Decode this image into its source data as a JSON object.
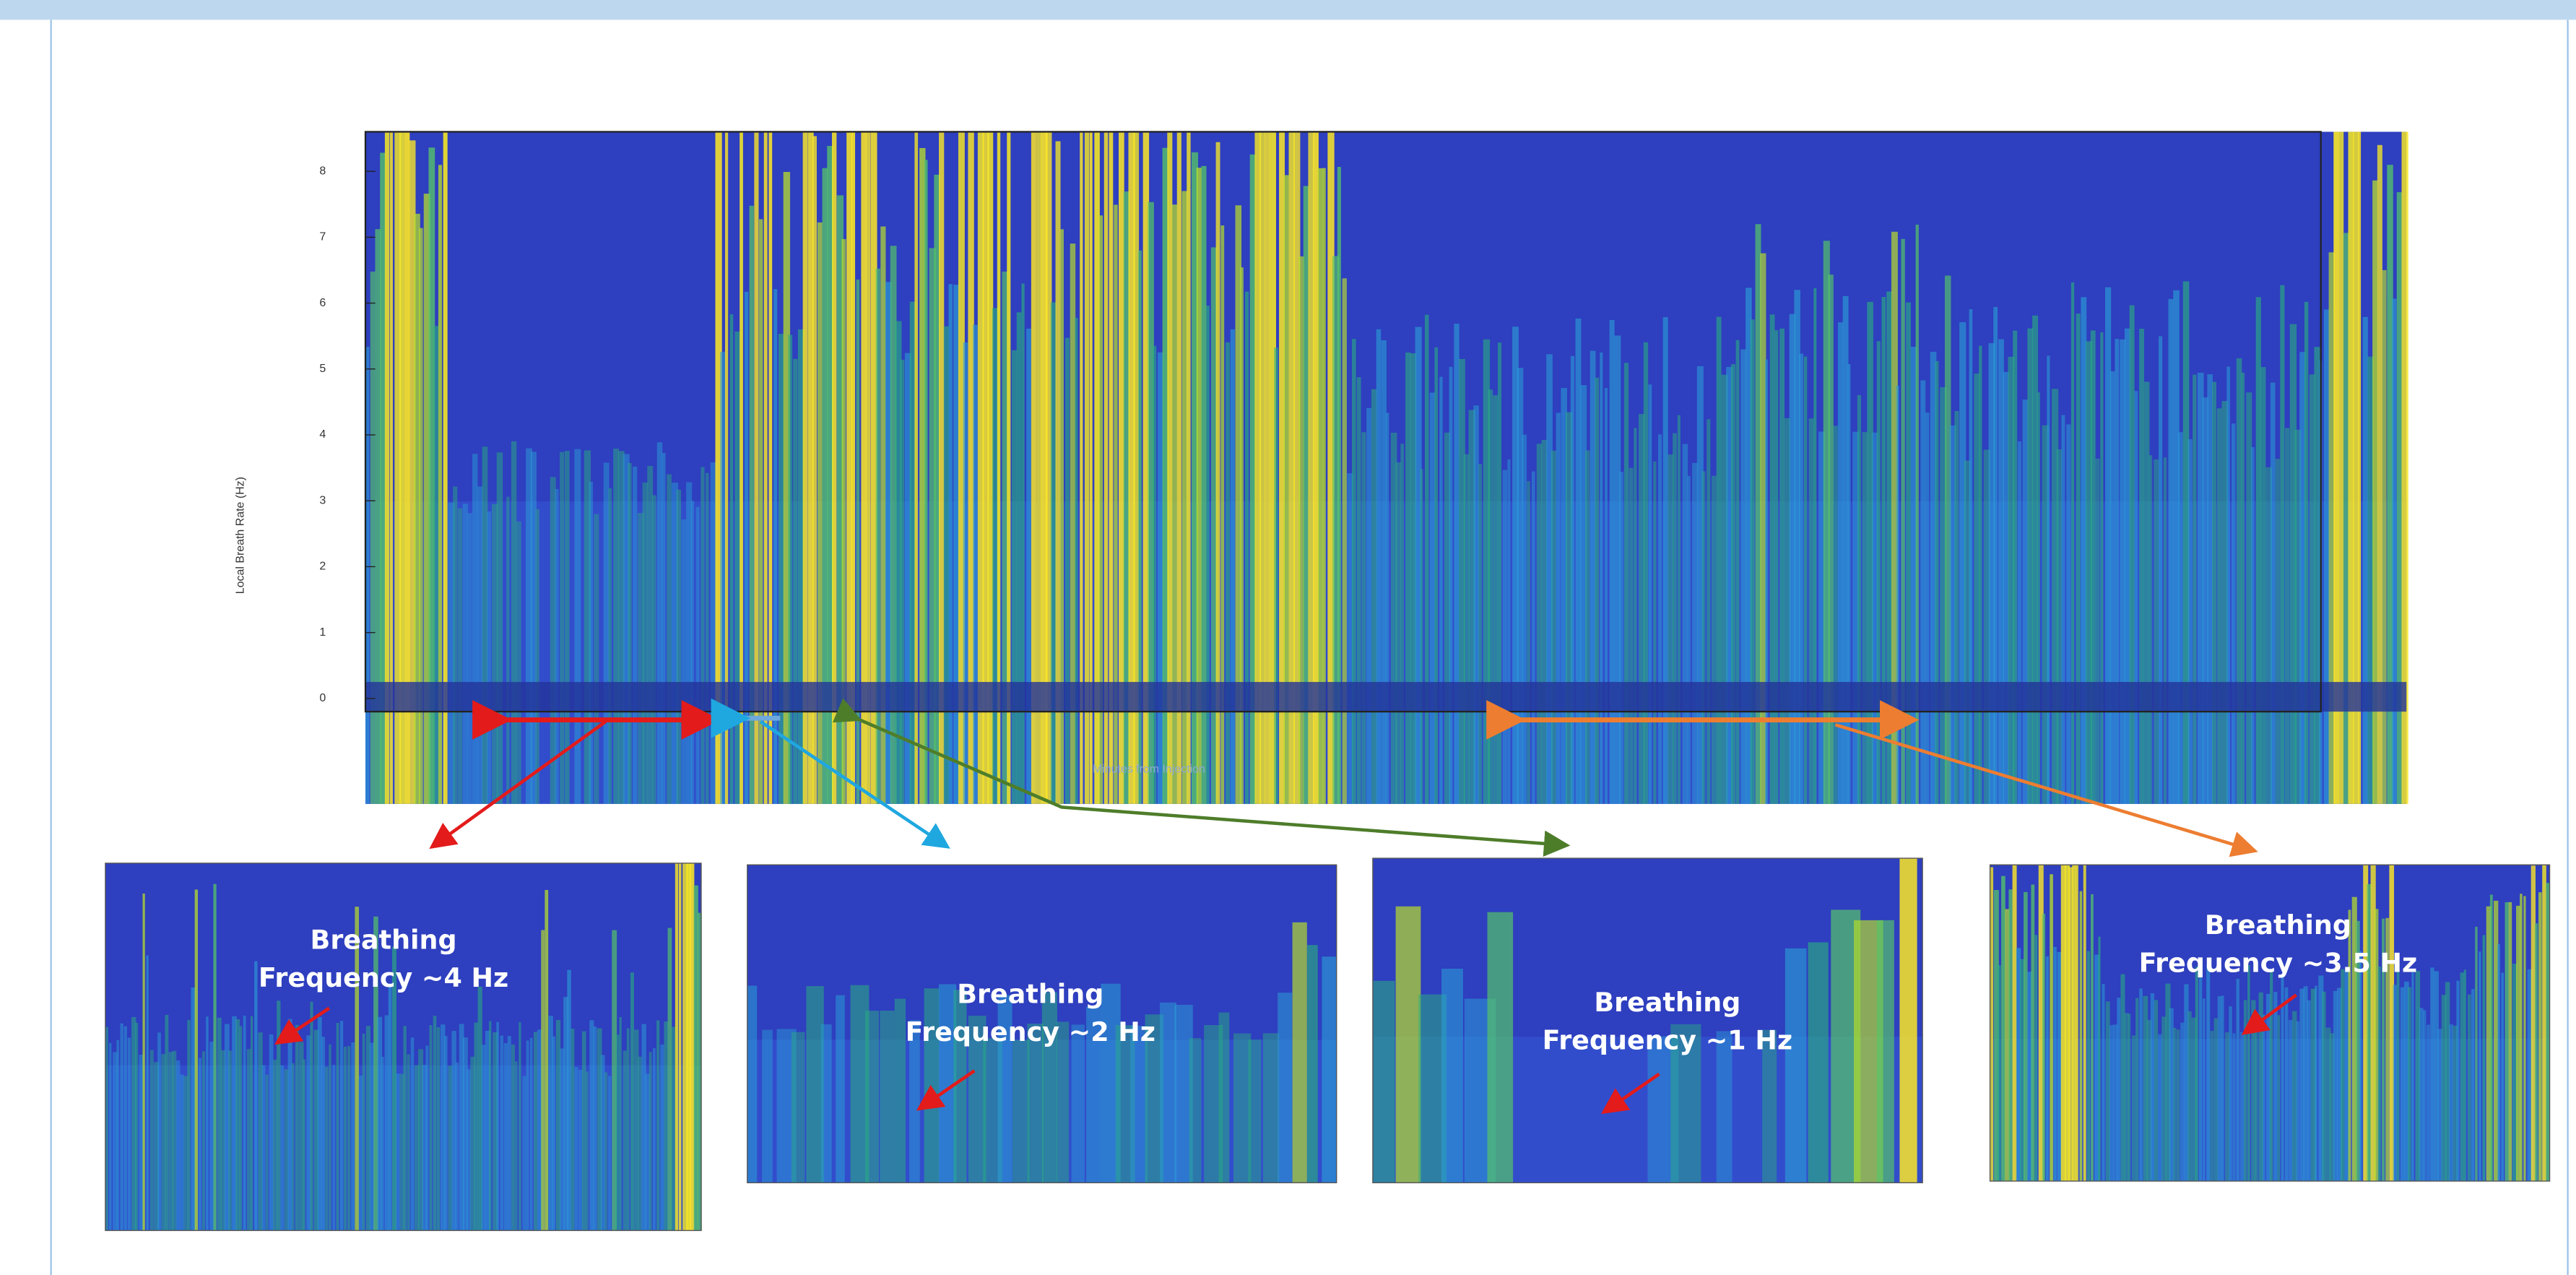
{
  "main_plot": {
    "ylabel": "Local Breath Rate (Hz)",
    "xlabel": "Minutes from Injection",
    "yticks": [
      "0",
      "1",
      "2",
      "3",
      "4",
      "5",
      "6",
      "7",
      "8"
    ]
  },
  "insets": [
    {
      "lines": [
        "Breathing",
        "Frequency ~4 Hz"
      ]
    },
    {
      "lines": [
        "Breathing",
        "Frequency ~2 Hz"
      ]
    },
    {
      "lines": [
        "Breathing",
        "Frequency ~1 Hz"
      ]
    },
    {
      "lines": [
        "Breathing",
        "Frequency ~3.5 Hz"
      ]
    }
  ]
}
